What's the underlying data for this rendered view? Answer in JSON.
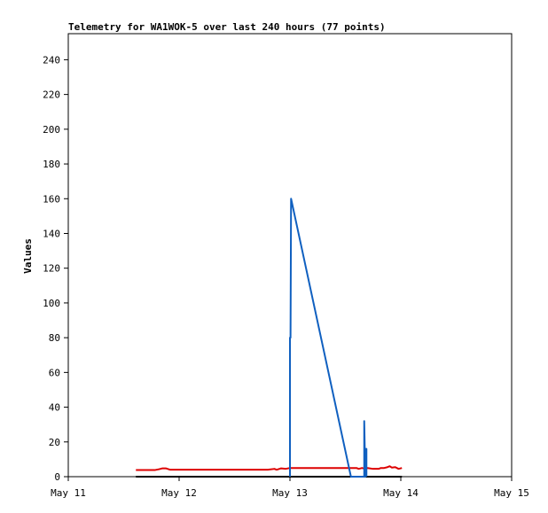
{
  "chart_data": {
    "type": "line",
    "title": "Telemetry for WA1WOK-5 over last 240 hours (77 points)",
    "xlabel": "",
    "ylabel": "Values",
    "x_unit": "days after May 11",
    "xlim": [
      0,
      4
    ],
    "ylim": [
      0,
      255
    ],
    "x_ticks": [
      0,
      1,
      2,
      3,
      4
    ],
    "x_tick_labels": [
      "May 11",
      "May 12",
      "May 13",
      "May 14",
      "May 15"
    ],
    "y_ticks": [
      0,
      20,
      40,
      60,
      80,
      100,
      120,
      140,
      160,
      180,
      200,
      220,
      240
    ],
    "y_tick_labels": [
      "0",
      "20",
      "40",
      "60",
      "80",
      "100",
      "120",
      "140",
      "160",
      "180",
      "200",
      "220",
      "240"
    ],
    "grid": false,
    "legend": "none",
    "series": [
      {
        "color": "#000000",
        "x": [
          0.61,
          3.01
        ],
        "y": [
          0,
          0
        ]
      },
      {
        "color": "#dd0000",
        "x": [
          0.61,
          0.78,
          0.82,
          0.85,
          0.88,
          0.92,
          1.2,
          1.5,
          1.8,
          1.86,
          1.88,
          1.92,
          1.96,
          2.0,
          2.3,
          2.5,
          2.6,
          2.62,
          2.65,
          2.68,
          2.7,
          2.75,
          2.8,
          2.82,
          2.85,
          2.88,
          2.9,
          2.92,
          2.95,
          2.98,
          3.01
        ],
        "y": [
          3.8,
          3.8,
          4.3,
          4.8,
          4.8,
          4.0,
          4.0,
          4.0,
          4.0,
          4.5,
          4.0,
          4.8,
          4.5,
          5.0,
          5.0,
          5.0,
          5.0,
          4.5,
          5.0,
          4.5,
          5.0,
          4.5,
          4.5,
          5.0,
          5.0,
          5.5,
          6.0,
          5.2,
          5.5,
          4.5,
          5.0
        ]
      },
      {
        "color": "#1060c0",
        "x": [
          2.0,
          2.0,
          2.005,
          2.01,
          2.55,
          2.55,
          2.65,
          2.67,
          2.67,
          2.68,
          2.68,
          2.69,
          2.69
        ],
        "y": [
          0,
          80,
          80,
          160,
          0,
          0,
          0,
          0,
          32,
          0,
          16,
          16,
          0
        ]
      }
    ]
  }
}
